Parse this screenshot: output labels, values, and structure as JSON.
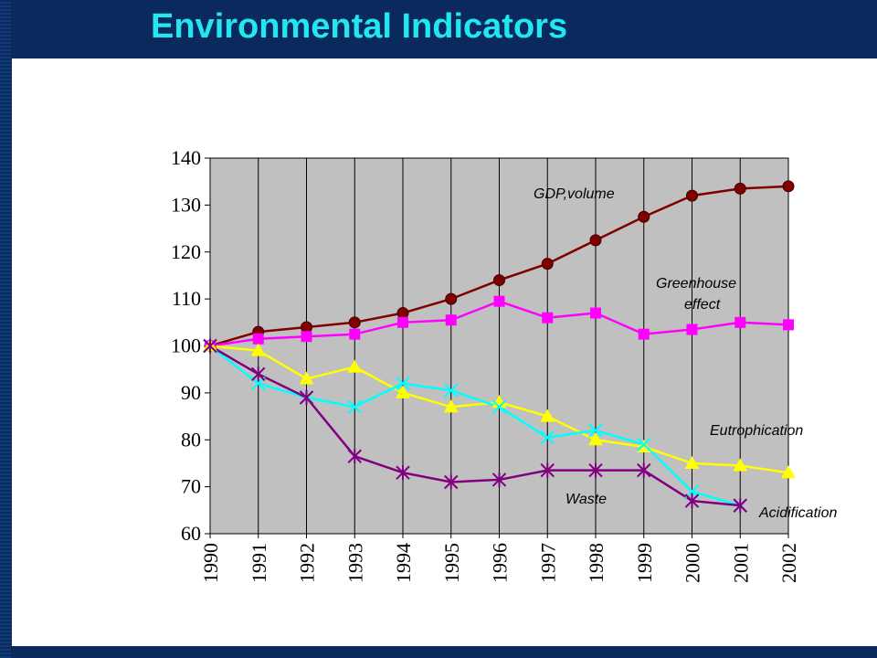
{
  "header": {
    "title": "Environmental Indicators"
  },
  "chart_data": {
    "type": "line",
    "title": "",
    "xlabel": "",
    "ylabel": "",
    "ylim": [
      60,
      140
    ],
    "yticks": [
      60,
      70,
      80,
      90,
      100,
      110,
      120,
      130,
      140
    ],
    "x": [
      "1990",
      "1991",
      "1992",
      "1993",
      "1994",
      "1995",
      "1996",
      "1997",
      "1998",
      "1999",
      "2000",
      "2001",
      "2002"
    ],
    "plot_background": "#c0c0c0",
    "grid": "vertical",
    "series": [
      {
        "name": "GDP,volume",
        "color": "#800000",
        "marker": "circle",
        "values": [
          100,
          103,
          104,
          105,
          107,
          110,
          114,
          117.5,
          122.5,
          127.5,
          132,
          133.5,
          134
        ]
      },
      {
        "name": "Greenhouse effect",
        "color": "#ff00ff",
        "marker": "square",
        "values": [
          100,
          101.5,
          102,
          102.5,
          105,
          105.5,
          109.5,
          106,
          107,
          102.5,
          103.5,
          105,
          104.5
        ]
      },
      {
        "name": "Eutrophication",
        "color": "#ffff00",
        "marker": "triangle",
        "values": [
          100,
          99,
          93,
          95.5,
          90,
          87,
          88,
          85,
          80,
          78.5,
          75,
          74.5,
          73
        ]
      },
      {
        "name": "Acidification",
        "color": "#00ffff",
        "marker": "x",
        "values": [
          100,
          92,
          89,
          87,
          92,
          90.5,
          87,
          80.5,
          82,
          79,
          69,
          66,
          null
        ]
      },
      {
        "name": "Waste",
        "color": "#800080",
        "marker": "star",
        "values": [
          100,
          94,
          89,
          76.5,
          73,
          71,
          71.5,
          73.5,
          73.5,
          73.5,
          67,
          66,
          null
        ]
      }
    ],
    "annotations": [
      {
        "text": "GDP,volume"
      },
      {
        "text": "Greenhouse"
      },
      {
        "text": "effect"
      },
      {
        "text": "Eutrophication"
      },
      {
        "text": "Waste"
      },
      {
        "text": "Acidification"
      }
    ]
  }
}
